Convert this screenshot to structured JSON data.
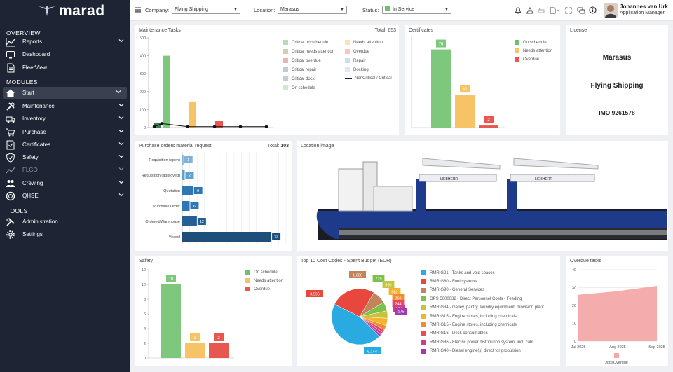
{
  "app": {
    "brand": "marad"
  },
  "sidebar": {
    "sections": [
      {
        "label": "OVERVIEW",
        "items": [
          {
            "label": "Reports",
            "icon": "chart-line-icon",
            "chevron": true
          },
          {
            "label": "Dashboard",
            "icon": "dashboard-icon",
            "chevron": false
          },
          {
            "label": "FleetView",
            "icon": "document-icon",
            "chevron": false
          }
        ]
      },
      {
        "label": "MODULES",
        "items": [
          {
            "label": "Start",
            "icon": "home-icon",
            "chevron": true,
            "active": true
          },
          {
            "label": "Maintenance",
            "icon": "tools-icon",
            "chevron": true
          },
          {
            "label": "Inventory",
            "icon": "truck-icon",
            "chevron": true
          },
          {
            "label": "Purchase",
            "icon": "cart-icon",
            "chevron": true
          },
          {
            "label": "Certificates",
            "icon": "certificate-icon",
            "chevron": true
          },
          {
            "label": "Safety",
            "icon": "shield-icon",
            "chevron": true
          },
          {
            "label": "FLGO",
            "icon": "flgo-icon",
            "chevron": true,
            "dim": true
          },
          {
            "label": "Crewing",
            "icon": "crew-icon",
            "chevron": true
          },
          {
            "label": "QHSE",
            "icon": "qhse-icon",
            "chevron": true
          }
        ]
      },
      {
        "label": "TOOLS",
        "items": [
          {
            "label": "Administration",
            "icon": "admin-icon",
            "chevron": false
          },
          {
            "label": "Settings",
            "icon": "gear-icon",
            "chevron": false
          }
        ]
      }
    ]
  },
  "topbar": {
    "company_label": "Company:",
    "company_value": "Flying Shipping",
    "location_label": "Location:",
    "location_value": "Marasus",
    "status_label": "Status:",
    "status_value": "In Service",
    "status_color": "#6cc070",
    "user_name": "Johannes van Urk",
    "user_role": "Application Manager"
  },
  "maintenance": {
    "title": "Maintenance Tasks",
    "total_label": "Total:",
    "total": "653",
    "legend": [
      {
        "label": "Critical on schedule",
        "color": "#b9dcb6"
      },
      {
        "label": "Needs attention",
        "color": "#fde1bf"
      },
      {
        "label": "Critical needs attention",
        "color": "#d4cdb6"
      },
      {
        "label": "Overdue",
        "color": "#f8c5c2"
      },
      {
        "label": "Critical overdue",
        "color": "#e8b5b5"
      },
      {
        "label": "Repair",
        "color": "#c9dff2"
      },
      {
        "label": "Critical repair",
        "color": "#c0c9d9"
      },
      {
        "label": "Docking",
        "color": "#dce9f5"
      },
      {
        "label": "Critical dock",
        "color": "#c6ccd0"
      },
      {
        "label": "NonCritical / Critical",
        "line": true
      },
      {
        "label": "On schedule",
        "color": "#cfe8cf"
      }
    ],
    "chart_data": {
      "type": "bar",
      "y_ticks": [
        "0",
        "100",
        "200",
        "300",
        "400",
        "500"
      ],
      "ylim": [
        0,
        500
      ],
      "bars": [
        {
          "value": 25,
          "color": "#3e7b50"
        },
        {
          "value": 400,
          "color": "#7ec87e"
        },
        {
          "value": 145,
          "color": "#f6c467"
        },
        {
          "value": 35,
          "color": "#e8574f"
        }
      ],
      "line_points": [
        5,
        22,
        5,
        5,
        5,
        5
      ]
    }
  },
  "certificates": {
    "title": "Certificates",
    "legend": [
      {
        "label": "On schedule",
        "color": "#6cc070"
      },
      {
        "label": "Needs attention",
        "color": "#f6c467"
      },
      {
        "label": "Overdue",
        "color": "#e8574f"
      }
    ],
    "chart_data": {
      "type": "bar",
      "categories": [
        "On schedule",
        "Needs attention",
        "Overdue"
      ],
      "values": [
        76,
        32,
        2
      ],
      "colors": [
        "#7ec87e",
        "#f6c467",
        "#e8574f"
      ],
      "ymax": 90
    }
  },
  "license": {
    "title": "License",
    "vessel": "Marasus",
    "company": "Flying Shipping",
    "imo": "IMO 9261578"
  },
  "purchase": {
    "title": "Purchase orders material request",
    "total_label": "Total:",
    "total": "103",
    "chart_data": {
      "type": "bar",
      "orientation": "horizontal",
      "categories": [
        "Requisition (open)",
        "Requisition (approved)",
        "Quotation",
        "Purchase Order",
        "Ordered/Warehouse",
        "Vessel"
      ],
      "values": [
        1,
        2,
        9,
        6,
        12,
        73
      ],
      "colors": [
        "#7fb3d8",
        "#5ea2d0",
        "#2f77b2",
        "#2f77b2",
        "#245f95",
        "#1e4f7a"
      ],
      "xmax": 85
    }
  },
  "location": {
    "title": "Location image",
    "ship_text": "LIEBHERR"
  },
  "safety": {
    "title": "Safety",
    "legend": [
      {
        "label": "On schedule",
        "color": "#6cc070"
      },
      {
        "label": "Needs attention",
        "color": "#f6c467"
      },
      {
        "label": "Overdue",
        "color": "#e8574f"
      }
    ],
    "chart_data": {
      "type": "bar",
      "categories": [
        "On schedule",
        "Needs attention",
        "Overdue"
      ],
      "values": [
        10,
        2,
        2
      ],
      "colors": [
        "#7ec87e",
        "#f6c467",
        "#e8574f"
      ],
      "y_ticks": [
        "0",
        "2",
        "4",
        "6",
        "8",
        "10",
        "12"
      ],
      "ylim": [
        0,
        12
      ]
    }
  },
  "costcodes": {
    "title": "Top 10 Cost Codes - Spent Budget (EUR)",
    "chart_data": {
      "type": "pie",
      "slices": [
        {
          "label": "RMR G21 - Tanks and void spaces",
          "value": 6144,
          "display": "6,144",
          "color": "#29abe2"
        },
        {
          "label": "RMR G80 - Fuel systems",
          "value": 3596,
          "display": "3,596",
          "color": "#e8473e"
        },
        {
          "label": "RMR G90 - General Services",
          "value": 1080,
          "display": "1,080",
          "color": "#c2845a"
        },
        {
          "label": "OPS 5000032 - Direct Personnel Costs - Feeding",
          "value": 719,
          "display": "719",
          "color": "#7ec04a"
        },
        {
          "label": "RMR G34 - Galley, pantry, laundry equipment, provision plant",
          "value": 590,
          "display": "590",
          "color": "#c7c43a"
        },
        {
          "label": "RMR G15 - Engine stores, including chemicals",
          "value": 582,
          "display": "582",
          "color": "#f6b22c"
        },
        {
          "label": "RMR G15 - Engine stores, including chemicals",
          "value": 360,
          "display": "360",
          "color": "#f28a2e"
        },
        {
          "label": "RMR G16 - Deck consumables",
          "value": 244,
          "display": "244",
          "color": "#e8495e"
        },
        {
          "label": "RMR G86 - Electric power distribution system, incl. cabl",
          "value": 224,
          "display": "224",
          "color": "#cf3a8a"
        },
        {
          "label": "RMR G40 - Diesel engine(s) direct for propulsion",
          "value": 175,
          "display": "175",
          "color": "#a23ab0"
        }
      ]
    }
  },
  "overdue": {
    "title": "Overdue tasks",
    "legend": [
      {
        "label": "JobsOverdue",
        "color": "#f4a8a8"
      }
    ],
    "chart_data": {
      "type": "area",
      "x": [
        "Jul 2025",
        "Aug 2025",
        "Sep 2025"
      ],
      "values": [
        26,
        28,
        31
      ],
      "y_ticks": [
        "0",
        "10",
        "20",
        "30",
        "40"
      ],
      "ylim": [
        0,
        40
      ]
    }
  }
}
